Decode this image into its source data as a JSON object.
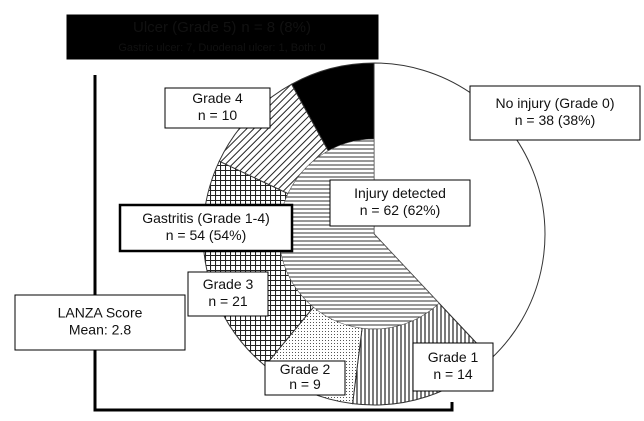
{
  "chart_data": {
    "type": "pie",
    "categories": [
      "No injury (Grade 0)",
      "Grade 1",
      "Grade 2",
      "Grade 3",
      "Grade 4",
      "Ulcer (Grade 5)"
    ],
    "values": [
      38,
      14,
      9,
      21,
      10,
      8
    ],
    "value_labels": [
      "n = 38 (38%)",
      "n = 14",
      "n = 9",
      "n = 21",
      "n = 10",
      "n = 8 (8%)"
    ],
    "fills": [
      "white",
      "vertical",
      "dots",
      "grid",
      "diagonal",
      "black"
    ],
    "inner": {
      "label": "Injury detected",
      "value": 62,
      "value_label": "n = 62 (62%)",
      "fill": "horizontal"
    },
    "annotations": [
      "Gastric ulcer: 7, Duodenal ulcer: 1, Both: 0",
      "Gastritis (Grade 1-4)",
      "n = 54 (54%)",
      "LANZA Score",
      "Mean: 2.8"
    ]
  }
}
